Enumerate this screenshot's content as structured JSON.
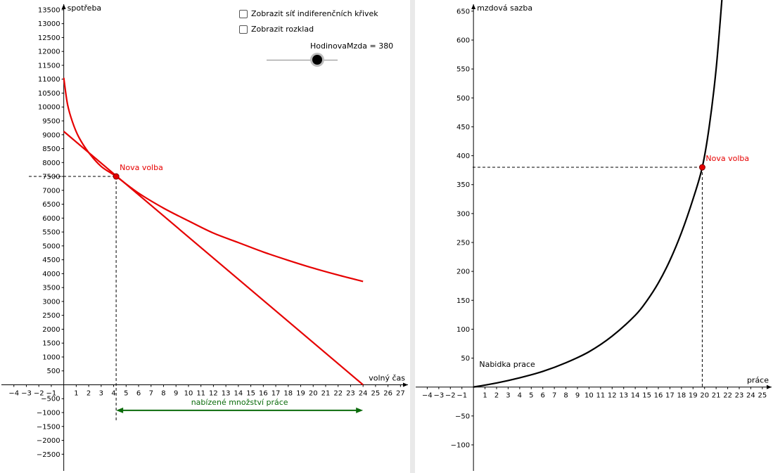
{
  "controls": {
    "checkbox1": {
      "label": "Zobrazit síť indiferenčních křivek",
      "checked": false
    },
    "checkbox2": {
      "label": "Zobrazit rozklad",
      "checked": false
    },
    "slider": {
      "label": "HodinovaMzda = 380",
      "value": 380
    }
  },
  "colors": {
    "curve": "#e60000",
    "supply": "#000000",
    "arrow": "#0b6b0b",
    "divider": "#dcdcdc"
  },
  "chart_data": [
    {
      "type": "line",
      "title": "",
      "xlabel": "volný čas",
      "ylabel": "spotřeba",
      "xlim": [
        -5,
        27.6
      ],
      "ylim": [
        -3100,
        13700
      ],
      "x_ticks": [
        -4,
        -3,
        -2,
        -1,
        1,
        2,
        3,
        4,
        5,
        6,
        7,
        8,
        9,
        10,
        11,
        12,
        13,
        14,
        15,
        16,
        17,
        18,
        19,
        20,
        21,
        22,
        23,
        24,
        25,
        26,
        27
      ],
      "y_ticks": [
        -2500,
        -2000,
        -1500,
        -1000,
        -500,
        500,
        1000,
        1500,
        2000,
        2500,
        3000,
        3500,
        4000,
        4500,
        5000,
        5500,
        6000,
        6500,
        7000,
        7500,
        8000,
        8500,
        9000,
        9500,
        10000,
        10500,
        11000,
        11500,
        12000,
        12500,
        13000,
        13500
      ],
      "series": [
        {
          "points": [
            [
              0,
              9120
            ],
            [
              24,
              0
            ]
          ]
        },
        {
          "points": [
            [
              0,
              11050
            ],
            [
              0.3,
              10100
            ],
            [
              0.7,
              9460
            ],
            [
              1.2,
              8920
            ],
            [
              2,
              8360
            ],
            [
              3,
              7860
            ],
            [
              4.2,
              7500
            ],
            [
              6,
              6900
            ],
            [
              8,
              6360
            ],
            [
              10,
              5900
            ],
            [
              12,
              5460
            ],
            [
              14,
              5120
            ],
            [
              16,
              4780
            ],
            [
              18,
              4480
            ],
            [
              20,
              4200
            ],
            [
              22,
              3950
            ],
            [
              24,
              3720
            ]
          ]
        }
      ],
      "point": {
        "label": "Nova volba",
        "x": 4.2,
        "y": 7500
      },
      "annotation": {
        "label": "nabízené množství práce",
        "from": 4.2,
        "to": 24,
        "y": -920
      }
    },
    {
      "type": "line",
      "title": "",
      "xlabel": "práce",
      "ylabel": "mzdová sazba",
      "xlim": [
        -5,
        25.8
      ],
      "ylim": [
        -145,
        662
      ],
      "x_ticks": [
        -4,
        -3,
        -2,
        -1,
        1,
        2,
        3,
        4,
        5,
        6,
        7,
        8,
        9,
        10,
        11,
        12,
        13,
        14,
        15,
        16,
        17,
        18,
        19,
        20,
        21,
        22,
        23,
        24,
        25
      ],
      "y_ticks": [
        -100,
        -50,
        50,
        100,
        150,
        200,
        250,
        300,
        350,
        400,
        450,
        500,
        550,
        600,
        650
      ],
      "series": [
        {
          "name": "Nabidka prace",
          "points": [
            [
              0,
              0
            ],
            [
              2,
              7
            ],
            [
              4,
              16
            ],
            [
              6,
              27
            ],
            [
              8,
              42
            ],
            [
              10,
              61
            ],
            [
              12,
              88
            ],
            [
              14,
              124
            ],
            [
              15,
              149
            ],
            [
              16,
              180
            ],
            [
              17,
              219
            ],
            [
              18,
              267
            ],
            [
              19,
              325
            ],
            [
              19.8,
              380
            ],
            [
              20.4,
              450
            ],
            [
              21,
              550
            ],
            [
              21.5,
              670
            ]
          ]
        }
      ],
      "point": {
        "label": "Nova volba",
        "x": 19.8,
        "y": 380
      }
    }
  ]
}
